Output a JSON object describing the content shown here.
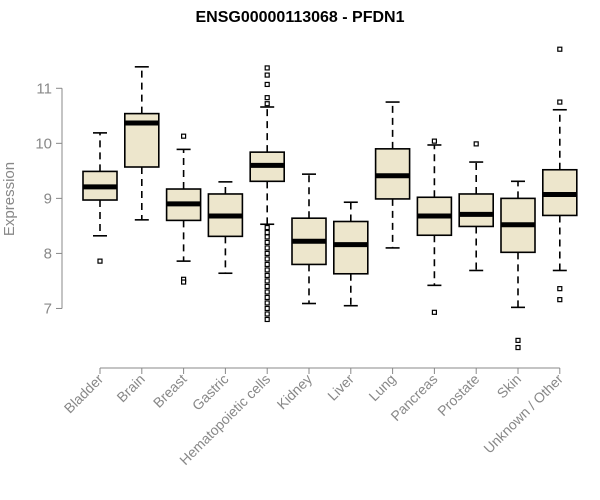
{
  "chart_data": {
    "type": "boxplot",
    "title": "ENSG00000113068 - PFDN1",
    "ylabel": "Expression",
    "xlabel": "",
    "ylim": [
      6.1,
      11.95
    ],
    "yticks": [
      7,
      8,
      9,
      10,
      11
    ],
    "box_fill": "#ede6cc",
    "stroke": "#000000",
    "categories": [
      "Bladder",
      "Brain",
      "Breast",
      "Gastric",
      "Hematopoietic cells",
      "Kidney",
      "Liver",
      "Lung",
      "Pancreas",
      "Prostate",
      "Skin",
      "Unknown / Other"
    ],
    "boxes": [
      {
        "whisker_low": 8.32,
        "q1": 8.97,
        "median": 9.21,
        "q3": 9.49,
        "whisker_high": 10.19,
        "outliers": [
          7.86
        ]
      },
      {
        "whisker_low": 8.61,
        "q1": 9.57,
        "median": 10.37,
        "q3": 10.54,
        "whisker_high": 11.39,
        "outliers": []
      },
      {
        "whisker_low": 7.86,
        "q1": 8.6,
        "median": 8.9,
        "q3": 9.17,
        "whisker_high": 9.89,
        "outliers": [
          10.13,
          7.53,
          7.48
        ]
      },
      {
        "whisker_low": 7.64,
        "q1": 8.31,
        "median": 8.68,
        "q3": 9.08,
        "whisker_high": 9.3,
        "outliers": []
      },
      {
        "whisker_low": 8.53,
        "q1": 9.31,
        "median": 9.6,
        "q3": 9.84,
        "whisker_high": 10.66,
        "outliers": [
          11.37,
          11.24,
          11.07,
          10.83,
          10.72,
          8.47,
          8.38,
          8.3,
          8.2,
          8.1,
          8.0,
          7.9,
          7.8,
          7.7,
          7.6,
          7.5,
          7.4,
          7.3,
          7.2,
          7.1,
          7.0,
          6.9,
          6.8
        ]
      },
      {
        "whisker_low": 7.09,
        "q1": 7.8,
        "median": 8.22,
        "q3": 8.64,
        "whisker_high": 9.44,
        "outliers": []
      },
      {
        "whisker_low": 7.05,
        "q1": 7.63,
        "median": 8.16,
        "q3": 8.58,
        "whisker_high": 8.93,
        "outliers": []
      },
      {
        "whisker_low": 8.1,
        "q1": 8.99,
        "median": 9.41,
        "q3": 9.9,
        "whisker_high": 10.75,
        "outliers": []
      },
      {
        "whisker_low": 7.42,
        "q1": 8.33,
        "median": 8.68,
        "q3": 9.02,
        "whisker_high": 9.97,
        "outliers": [
          10.04,
          6.93
        ]
      },
      {
        "whisker_low": 7.69,
        "q1": 8.49,
        "median": 8.71,
        "q3": 9.08,
        "whisker_high": 9.66,
        "outliers": [
          9.99
        ]
      },
      {
        "whisker_low": 7.02,
        "q1": 8.02,
        "median": 8.52,
        "q3": 9.0,
        "whisker_high": 9.31,
        "outliers": [
          6.42,
          6.29
        ]
      },
      {
        "whisker_low": 7.69,
        "q1": 8.69,
        "median": 9.07,
        "q3": 9.52,
        "whisker_high": 10.61,
        "outliers": [
          11.71,
          10.75,
          7.36,
          7.16
        ]
      }
    ]
  }
}
